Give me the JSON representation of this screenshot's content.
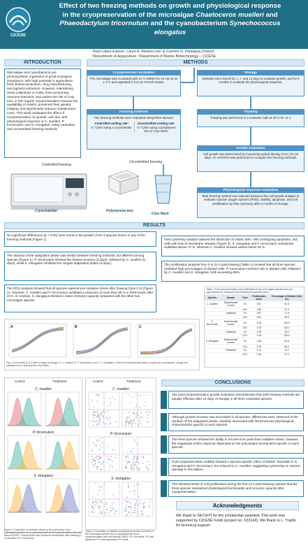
{
  "header": {
    "logo_text": "CICESE",
    "title_line1": "Effect of two freezing methods on growth and physiological response",
    "title_line2a": "in the cryopreservation of the microalgae ",
    "title_line2b": "Chaetoceros muelleri",
    "title_line2c": " and",
    "title_line3a": "Phaeodactylum tricornutum",
    "title_line3b": " and the cyanobacterium ",
    "title_line3c": "Synechococcus",
    "title_line4": "elongatus"
  },
  "authors": {
    "names": "Raúl López-Eslava¹, Laura A. Álvarez-Lee² & Carmen G. Paniagua-Chávez¹",
    "affiliations": "¹Department of Aquaculture, ²Department of Marine Biotechnology – CICESE"
  },
  "introduction": {
    "heading": "INTRODUCTION",
    "text": "Microalgae and cyanobacteria are photosynthetic organisms of great ecological importance, with high potential in aquaculture feed, biofuel production, drug manufacturing, and pigment extraction. However, maintaining strain collections is costly, time-consuming, resource-intensive, and carries the risk of crop loss. In this regard, cryopreservation ensures the availability of strains, preserves their genetic integrity, and significantly reduces maintenance costs. This study evaluated the effect of cryopreservation on growth, cell size, and physiological response in C. muelleri, P. tricornutum, and S. elongatus, using controlled and uncontrolled freezing methods."
  },
  "methods": {
    "heading": "METHODS",
    "cryo_head": "Cryoprotectant incubation",
    "cryo_body": "The microalgae was incubated with 10 % DMSO for 10 min at 22 ± 1°C and aspirated in 0.5 mL French straws.",
    "freeze_head": "Freezing methods",
    "freeze_body": "Two freezing methods were evaluated using three devices:",
    "controlled_title": "Controlled cooling rate:",
    "controlled_body": "-3 °C/min using a cryochamber.",
    "uncontrolled_title": "Uncontrolled cooling rate:",
    "uncontrolled_body": "-8 °C/min using a polystyrene box or Cryo Rack.",
    "storage_head": "Storage",
    "storage_body": "Samples were stored for 1, 7, and 14 days to evaluate growth, and for 6 months to evaluate the physiological response.",
    "thaw_head": "Thawing",
    "thaw_body": "Thawing was performed in a seawater bath at 45°C for 11 s.",
    "growth_head": "Growth evaluation",
    "growth_body": "Cell growth was determined by measuring optical density (O.D.) for 10 days. An ANCOVA was performed to compare the freezing methods.",
    "phys_head": "Physiological response evaluation",
    "phys_body": "Best freezing method was selected based on the cell growth analysis to evaluate reactive oxygen species (ROS), viability, apoptosis, and cell proliferation by flow cytometry after 6 months of storage.",
    "controlled_freezing_label": "Controlled freezing",
    "uncontrolled_freezing_label": "Uncontrolled freezing",
    "cryochamber_label": "Cryochamber",
    "polystyrene_label": "Polystyrene box",
    "cryorack_label": "Cryo Rack"
  },
  "results": {
    "heading": "RESULTS",
    "r1": "No significant differences (p > 0.05) were found in the growth of the 3 species frozen in any of the freezing methods (Figure 1).",
    "r2": "The duration of the adaptation phase was similar between freezing methods, but different among species (Figure 1). P. tricornutum showed the fastest recovery (3 days), followed by C. muelleri (5 days), while S. elongatus exhibited the longest adaptation phase (8 days).",
    "r3": "The ROS analysis showed that all species experienced oxidative stress after thawing (time 0 h) (Figure 2). However, C. muelleri and P. tricornutum exhibited a reduction of more than 90 % in ROS levels after 24 h. In contrast, S. elongatus showed a lower recovery capacity compared with the other two microalgae species.",
    "r4": "Flow cytometry analysis allowed the distinction of viable cells, cells undergoing apoptosis, and cells with loss of membrane integrity (Figure 3). S. elongatus and P. tricornutum maintained viabilities above 70 %, whereas C. muelleri showed values below 25 %.",
    "r5": "The proliferation analysis from 0 to 24 h post-thawing (Table 1) showed that all three species exhibited high percentages of divided cells. P. tricornutum reached 100 % divided cells, followed by C. muelleri and S. elongatus, both exceeding 95%.",
    "fig1_caption": "Fig. 1 Cell density (O.D.) after 14 days of storage. A. C. muelleri, B. P. tricornutum, and C. S. elongatus. Green line experimental control, purple line cryochamber, orange line polystyrene box and blue line Cryo Rack.",
    "fig1_panels": [
      "A",
      "B",
      "C"
    ],
    "fig2_caption": "Figure 2. Evaluation of oxidative stress by flow cytometry in live microalgae species and a cyanobacterium post-cryopreservation with and without DMSO. Fluorescence was measured immediately after thawing (0 h) and after 24 h of recovery.",
    "fig3_caption": "Figure 3. Evaluation of viability and apoptosis by flow cytometry in live microalgae species and a cyanobacterium post-cryopreservation with and without DMSO. R1: live viable, R2: late apoptosis, R3: early apoptosis, R4: dead.",
    "fig2_control": "Control",
    "fig2_treatment": "Treatment",
    "species": [
      "C. muelleri",
      "P. tricornutum",
      "S. elongatus"
    ],
    "table": {
      "caption": "Table 1. Post-cryopreservation cell proliferation of two microalgae species and one cyanobacterium, measured from thawing through time (min).",
      "headers": [
        "Species",
        "Sample",
        "Time",
        "Proliferation index",
        "Percentage of Divided Cells (%)"
      ],
      "rows": [
        [
          "C. muelleri",
          "Experimental control",
          "0 h",
          "0.97",
          "90.5"
        ],
        [
          "",
          "",
          "24 h",
          "1.95",
          "97.3"
        ],
        [
          "",
          "Treatment",
          "0 h",
          "0.87",
          "77.8"
        ],
        [
          "",
          "",
          "24 h",
          "0.81",
          "95.2"
        ],
        [
          "P. tricornutum",
          "Experimental control",
          "0 h",
          "0.15",
          "100.0"
        ],
        [
          "",
          "",
          "24 h",
          "0.16",
          "100.0"
        ],
        [
          "",
          "Treatment",
          "0 h",
          "1.06",
          "76.2"
        ],
        [
          "",
          "",
          "24 h",
          "0.16",
          "100.0"
        ],
        [
          "S. elongatus",
          "Experimental control",
          "0 h",
          "1.56",
          "62.6"
        ],
        [
          "",
          "",
          "24 h",
          "0.29",
          "98.4"
        ],
        [
          "",
          "Treatment",
          "0 h",
          "0.71",
          "72.1"
        ],
        [
          "",
          "",
          "24 h",
          "0.46",
          "97.2"
        ]
      ]
    }
  },
  "conclusions": {
    "heading": "CONCLUSIONS",
    "items": [
      "The post-cryopreservation growth evaluation demonstrates that both freezing methods are equally effective after 14 days of storage in all three evaluated species.",
      "Although growth recovery was successful in all species, differences were observed in the duration of the adaptation phase, possibly associated with structural and physiological characteristics specific to each species.",
      "The three species showed the ability to recover from post-thaw oxidative stress; however, the magnitude of this response depended on the antioxidant mechanisms specific to each species.",
      "Post-cryopreservation viability showed a species-specific effect of DMSO: favorable in S. elongatus and P. tricornutum, but reduced in C. muelleri, suggesting cytotoxicity or osmotic damage in this diatom.",
      "The elevated levels of cell proliferation during the first 24 h post-thawing indicate that the three species maintained physiological functionality and recovery capacity after cryopreservation."
    ]
  },
  "acknowledgments": {
    "heading": "Acknowledgments",
    "text": "We thank to SECIHTI for the scholarship awarded. This work was supported by CICESE funds (project no. 623142). We thank to L. Trujillo for technical support."
  },
  "colors": {
    "header": "#1f6f86",
    "accent": "#4f93c9",
    "control_line": "#4caf50",
    "cryochamber_line": "#8e44ad",
    "polystyrene_line": "#e67e22",
    "cryorack_line": "#2e86de"
  }
}
